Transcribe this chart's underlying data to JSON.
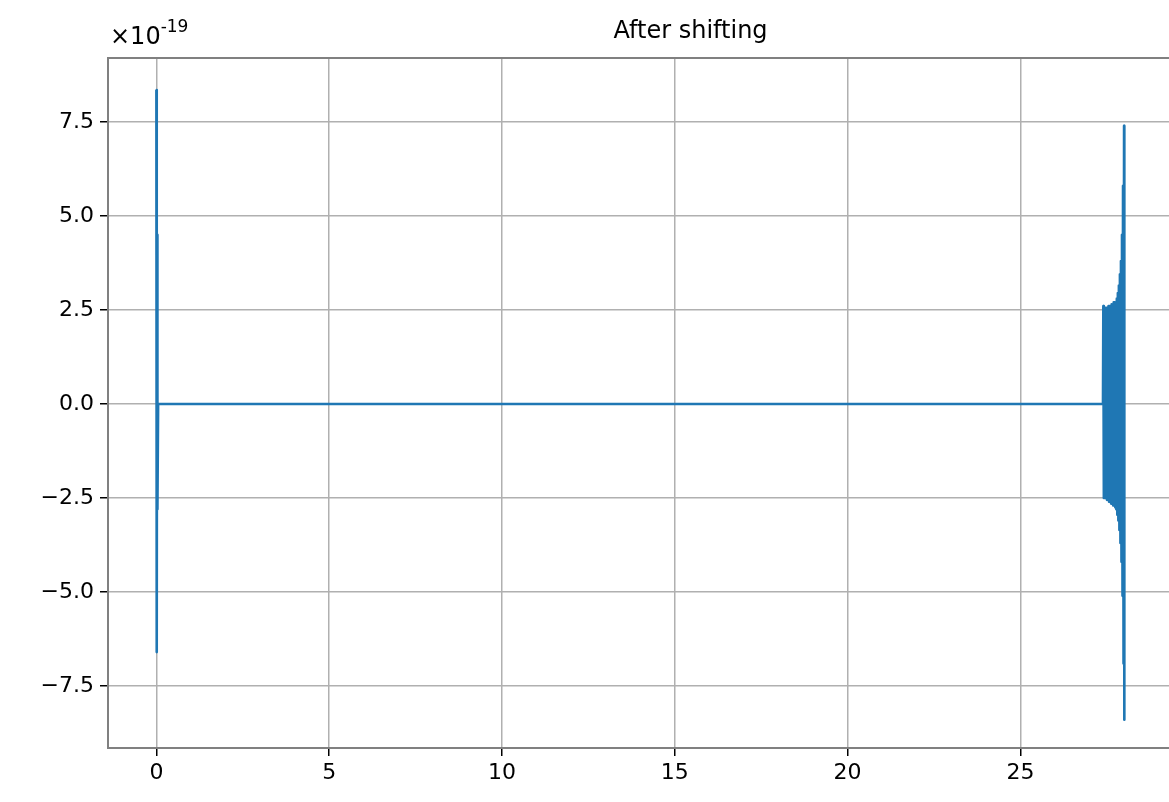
{
  "chart_data": {
    "type": "line",
    "title": "After shifting",
    "annotations": [
      "×10$^{-19}$"
    ],
    "series": [
      {
        "color": "#1f77b4",
        "x": [
          0,
          0.01,
          0.02,
          0.03,
          0.05,
          27.39,
          27.4,
          27.415,
          27.43,
          27.445,
          27.46,
          27.475,
          27.49,
          27.505,
          27.52,
          27.535,
          27.55,
          27.565,
          27.58,
          27.595,
          27.61,
          27.625,
          27.64,
          27.655,
          27.67,
          27.685,
          27.7,
          27.715,
          27.73,
          27.745,
          27.76,
          27.775,
          27.79,
          27.805,
          27.82,
          27.835,
          27.85,
          27.865,
          27.88,
          27.895,
          27.91,
          27.925,
          27.94,
          27.955,
          27.97,
          27.985,
          28.0,
          28.005,
          28.01
        ],
        "values": [
          8.35,
          -6.6,
          4.5,
          -2.8,
          0,
          0,
          2.6,
          -2.5,
          2.55,
          -2.5,
          2.55,
          -2.5,
          2.55,
          -2.55,
          2.55,
          -2.55,
          2.6,
          -2.6,
          2.6,
          -2.6,
          2.6,
          -2.65,
          2.65,
          -2.65,
          2.65,
          -2.7,
          2.7,
          -2.7,
          2.7,
          -2.75,
          2.7,
          -2.8,
          2.8,
          -2.95,
          2.95,
          -3.1,
          3.15,
          -3.35,
          3.45,
          -3.7,
          3.8,
          -4.2,
          4.5,
          -5.1,
          5.8,
          -6.9,
          7.4,
          -8.4,
          0
        ]
      }
    ],
    "xlim": [
      -1.4,
      29.3
    ],
    "xticks": [
      0,
      5,
      10,
      15,
      20,
      25
    ],
    "ylim": [
      -9.15,
      9.2
    ],
    "yticks": [
      {
        "value": -7.5,
        "label": "−7.5"
      },
      {
        "value": -5,
        "label": "−5.0"
      },
      {
        "value": -2.5,
        "label": "−2.5"
      },
      {
        "value": 0,
        "label": "0.0"
      },
      {
        "value": 2.5,
        "label": "2.5"
      },
      {
        "value": 5,
        "label": "5.0"
      },
      {
        "value": 7.5,
        "label": "7.5"
      }
    ],
    "grid": true,
    "legend": false,
    "marker": "none",
    "line_style": "solid"
  }
}
